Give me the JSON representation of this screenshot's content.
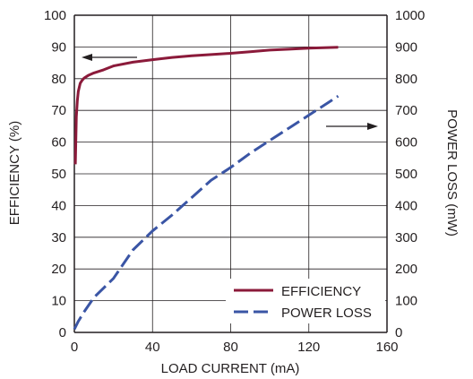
{
  "chart_data": {
    "type": "line",
    "title": "",
    "xlabel": "LOAD CURRENT (mA)",
    "ylabel_left": "EFFICIENCY (%)",
    "ylabel_right": "POWER LOSS (mW)",
    "xlim": [
      0,
      160
    ],
    "ylim_left": [
      0,
      100
    ],
    "ylim_right": [
      0,
      1000
    ],
    "x_ticks": [
      "0",
      "40",
      "80",
      "120",
      "160"
    ],
    "y_ticks_left": [
      "0",
      "10",
      "20",
      "30",
      "40",
      "50",
      "60",
      "70",
      "80",
      "90",
      "100"
    ],
    "y_ticks_right": [
      "0",
      "100",
      "200",
      "300",
      "400",
      "500",
      "600",
      "700",
      "800",
      "900",
      "1000"
    ],
    "grid": true,
    "legend_position": "bottom-right",
    "series": [
      {
        "name": "EFFICIENCY",
        "axis": "left",
        "color": "#8b1a3a",
        "dash": "solid",
        "x": [
          0.5,
          1,
          1.5,
          2,
          3,
          4,
          5,
          7,
          10,
          15,
          20,
          30,
          40,
          50,
          60,
          70,
          80,
          90,
          100,
          110,
          120,
          135
        ],
        "y": [
          53,
          68,
          73,
          76,
          78.5,
          79.5,
          80.2,
          81,
          81.8,
          82.8,
          84,
          85.2,
          86,
          86.7,
          87.2,
          87.6,
          88,
          88.5,
          89,
          89.3,
          89.6,
          89.9
        ]
      },
      {
        "name": "POWER LOSS",
        "axis": "right",
        "color": "#3a55a5",
        "dash": "dashed",
        "x": [
          0,
          2,
          5,
          10,
          15,
          20,
          25,
          30,
          40,
          50,
          60,
          70,
          80,
          90,
          100,
          110,
          120,
          130,
          135
        ],
        "y": [
          10,
          35,
          65,
          110,
          140,
          170,
          215,
          260,
          320,
          370,
          425,
          480,
          520,
          565,
          605,
          645,
          685,
          725,
          745
        ]
      }
    ],
    "annotations": [
      {
        "type": "arrow",
        "direction": "left",
        "points_to": "EFFICIENCY axis"
      },
      {
        "type": "arrow",
        "direction": "right",
        "points_to": "POWER LOSS axis"
      }
    ]
  }
}
